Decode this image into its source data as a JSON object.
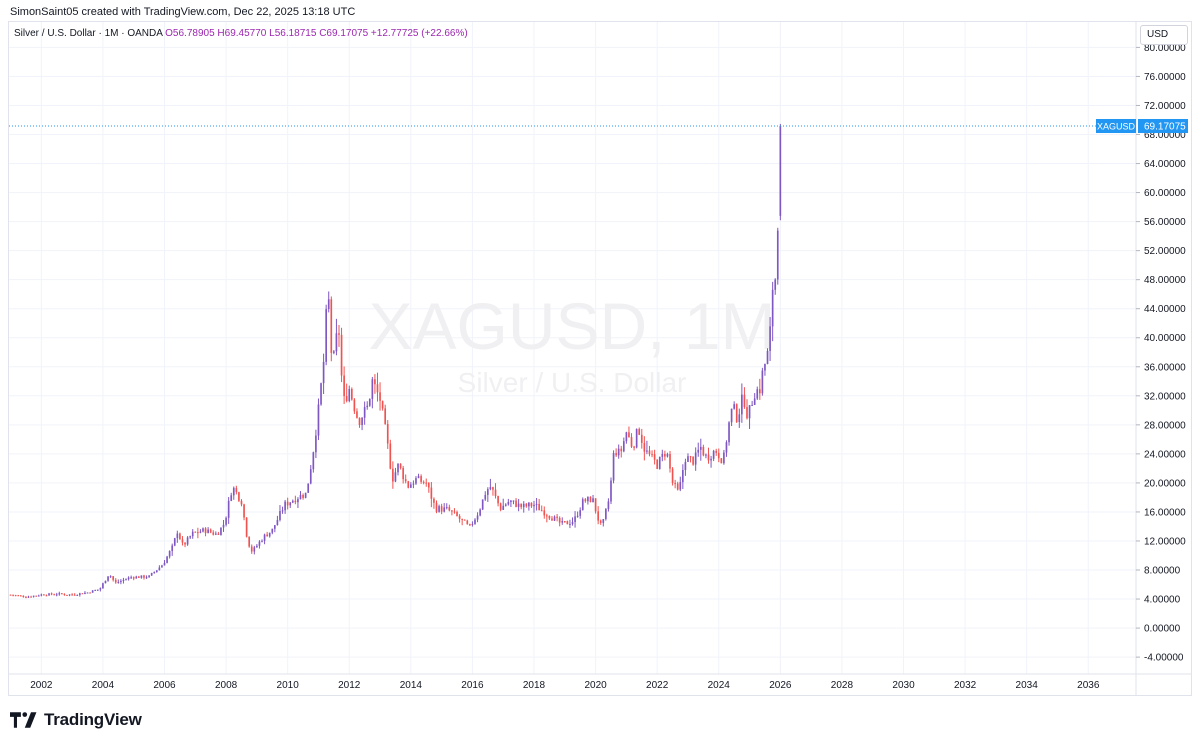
{
  "header": {
    "caption": "SimonSaint05 created with TradingView.com, Dec 22, 2025 13:18 UTC"
  },
  "legend": {
    "symbol_line": "Silver / U.S. Dollar · 1M · OANDA",
    "open": "O56.78905",
    "high": "H69.45770",
    "low": "L56.18715",
    "close": "C69.17075",
    "change": "+12.77725 (+22.66%)"
  },
  "currency_button": "USD",
  "watermark": {
    "symbol": "XAGUSD, 1M",
    "description": "Silver / U.S. Dollar"
  },
  "price_tag": {
    "ticker": "XAGUSD",
    "price": "69.17075",
    "value": 69.17075
  },
  "footer": {
    "brand": "TradingView"
  },
  "colors": {
    "up": "#7e57c2",
    "down": "#ef5350",
    "price_line": "#2196f3",
    "grid": "#f0f3fa",
    "axis_text": "#131722",
    "watermark": "#f0f0f3"
  },
  "chart_data": {
    "type": "candlestick",
    "timeframe": "1M",
    "y_tick_labels": [
      "-4.00000",
      "0.00000",
      "4.00000",
      "8.00000",
      "12.00000",
      "16.00000",
      "20.00000",
      "24.00000",
      "28.00000",
      "32.00000",
      "36.00000",
      "40.00000",
      "44.00000",
      "48.00000",
      "52.00000",
      "56.00000",
      "60.00000",
      "64.00000",
      "68.00000",
      "72.00000",
      "76.00000",
      "80.00000"
    ],
    "y_ticks": [
      -4,
      0,
      4,
      8,
      12,
      16,
      20,
      24,
      28,
      32,
      36,
      40,
      44,
      48,
      52,
      56,
      60,
      64,
      68,
      72,
      76,
      80
    ],
    "x_tick_labels": [
      "2002",
      "2004",
      "2006",
      "2008",
      "2010",
      "2012",
      "2014",
      "2016",
      "2018",
      "2020",
      "2022",
      "2024",
      "2026",
      "2028",
      "2030",
      "2032",
      "2034",
      "2036"
    ],
    "x_ticks": [
      2002,
      2004,
      2006,
      2008,
      2010,
      2012,
      2014,
      2016,
      2018,
      2020,
      2022,
      2024,
      2026,
      2028,
      2030,
      2032,
      2034,
      2036
    ],
    "x_range": [
      2000.95,
      2037.55
    ],
    "y_range": [
      -5.5,
      83.5
    ],
    "last_price": 69.17075,
    "anchors": [
      [
        2001.0,
        4.6
      ],
      [
        2001.5,
        4.3
      ],
      [
        2002.0,
        4.6
      ],
      [
        2002.5,
        4.7
      ],
      [
        2003.0,
        4.6
      ],
      [
        2003.5,
        4.9
      ],
      [
        2003.9,
        5.4
      ],
      [
        2004.2,
        7.5
      ],
      [
        2004.4,
        6.2
      ],
      [
        2004.9,
        7.0
      ],
      [
        2005.5,
        7.1
      ],
      [
        2005.95,
        8.8
      ],
      [
        2006.3,
        11.5
      ],
      [
        2006.4,
        13.5
      ],
      [
        2006.6,
        11.3
      ],
      [
        2006.9,
        13.0
      ],
      [
        2007.3,
        13.5
      ],
      [
        2007.7,
        12.9
      ],
      [
        2007.95,
        14.5
      ],
      [
        2008.2,
        19.5
      ],
      [
        2008.5,
        17.5
      ],
      [
        2008.7,
        12.0
      ],
      [
        2008.85,
        10.5
      ],
      [
        2009.2,
        12.5
      ],
      [
        2009.5,
        13.5
      ],
      [
        2009.9,
        17.0
      ],
      [
        2010.3,
        18.0
      ],
      [
        2010.6,
        18.5
      ],
      [
        2010.8,
        23.5
      ],
      [
        2011.0,
        30.0
      ],
      [
        2011.2,
        38.0
      ],
      [
        2011.3,
        47.5
      ],
      [
        2011.45,
        35.5
      ],
      [
        2011.65,
        42.0
      ],
      [
        2011.8,
        31.0
      ],
      [
        2012.0,
        33.0
      ],
      [
        2012.3,
        28.5
      ],
      [
        2012.6,
        30.5
      ],
      [
        2012.75,
        34.0
      ],
      [
        2013.0,
        31.5
      ],
      [
        2013.2,
        26.5
      ],
      [
        2013.4,
        20.5
      ],
      [
        2013.6,
        22.5
      ],
      [
        2013.9,
        19.5
      ],
      [
        2014.15,
        20.5
      ],
      [
        2014.5,
        20.0
      ],
      [
        2014.8,
        16.5
      ],
      [
        2015.2,
        16.3
      ],
      [
        2015.6,
        15.0
      ],
      [
        2015.9,
        13.8
      ],
      [
        2016.2,
        16.0
      ],
      [
        2016.45,
        19.0
      ],
      [
        2016.6,
        19.5
      ],
      [
        2016.9,
        16.5
      ],
      [
        2017.2,
        17.5
      ],
      [
        2017.6,
        16.7
      ],
      [
        2018.0,
        17.0
      ],
      [
        2018.5,
        15.5
      ],
      [
        2018.9,
        14.3
      ],
      [
        2019.3,
        14.8
      ],
      [
        2019.6,
        17.5
      ],
      [
        2019.9,
        17.8
      ],
      [
        2020.15,
        14.0
      ],
      [
        2020.25,
        14.6
      ],
      [
        2020.45,
        18.0
      ],
      [
        2020.6,
        24.5
      ],
      [
        2020.8,
        24.0
      ],
      [
        2021.0,
        27.0
      ],
      [
        2021.2,
        25.0
      ],
      [
        2021.4,
        27.5
      ],
      [
        2021.6,
        24.5
      ],
      [
        2021.8,
        23.5
      ],
      [
        2022.0,
        22.5
      ],
      [
        2022.3,
        24.5
      ],
      [
        2022.5,
        20.0
      ],
      [
        2022.7,
        18.5
      ],
      [
        2022.9,
        23.5
      ],
      [
        2023.2,
        23.0
      ],
      [
        2023.4,
        25.0
      ],
      [
        2023.6,
        23.5
      ],
      [
        2023.9,
        24.5
      ],
      [
        2024.15,
        23.0
      ],
      [
        2024.3,
        27.5
      ],
      [
        2024.45,
        30.5
      ],
      [
        2024.6,
        29.0
      ],
      [
        2024.8,
        32.0
      ],
      [
        2024.95,
        29.0
      ],
      [
        2025.15,
        32.5
      ],
      [
        2025.35,
        33.0
      ],
      [
        2025.45,
        36.0
      ],
      [
        2025.55,
        36.8
      ],
      [
        2025.65,
        39.5
      ],
      [
        2025.75,
        47.0
      ],
      [
        2025.85,
        48.5
      ],
      [
        2025.92,
        56.8
      ],
      [
        2026.0,
        69.17
      ]
    ]
  }
}
